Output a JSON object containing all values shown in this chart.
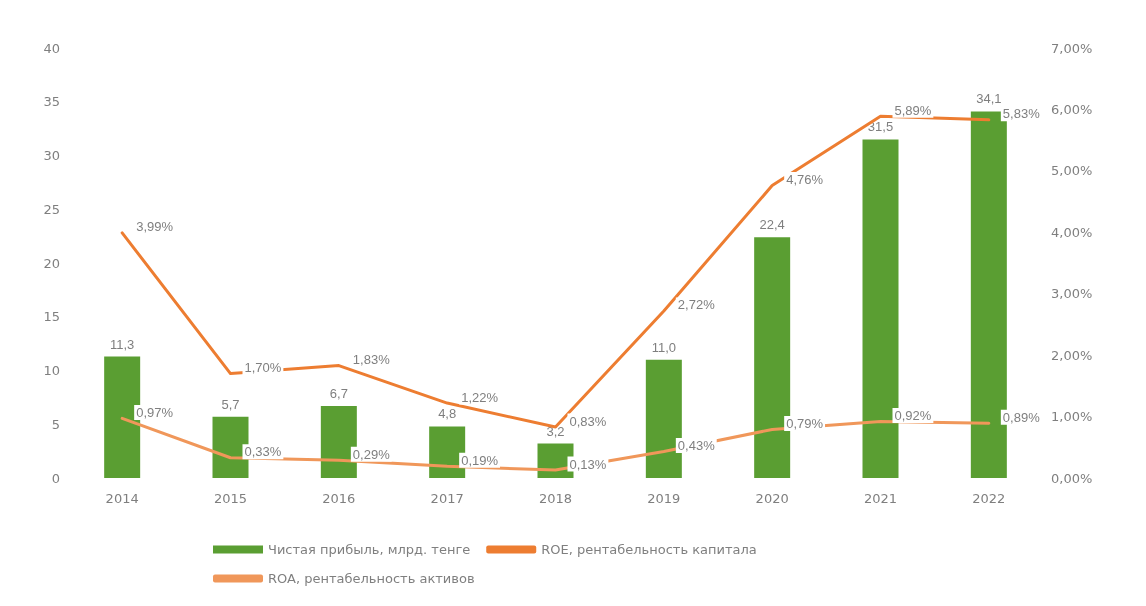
{
  "chart_data": {
    "type": "bar",
    "categories": [
      "2014",
      "2015",
      "2016",
      "2017",
      "2018",
      "2019",
      "2020",
      "2021",
      "2022"
    ],
    "series": [
      {
        "name": "Чистая прибыль, млрд. тенге",
        "color": "#5a9e32",
        "values": [
          11.3,
          5.7,
          6.7,
          4.8,
          3.2,
          11.0,
          22.4,
          31.5,
          34.1
        ],
        "value_labels": [
          "11,3",
          "5,7",
          "6,7",
          "4,8",
          "3,2",
          "11,0",
          "22,4",
          "31,5",
          "34,1"
        ]
      },
      {
        "name": "ROE, рентабельность капитала",
        "type": "line",
        "axis": "y2",
        "color": "#ed7d31",
        "values": [
          3.99,
          1.7,
          1.83,
          1.22,
          0.83,
          2.72,
          4.76,
          5.89,
          5.83
        ],
        "value_labels": [
          "3,99%",
          "1,70%",
          "1,83%",
          "1,22%",
          "0,83%",
          "2,72%",
          "4,76%",
          "5,89%",
          "5,83%"
        ]
      },
      {
        "name": "ROA, рентабельность активов",
        "type": "line",
        "axis": "y2",
        "color": "#f0975a",
        "values": [
          0.97,
          0.33,
          0.29,
          0.19,
          0.13,
          0.43,
          0.79,
          0.92,
          0.89
        ],
        "value_labels": [
          "0,97%",
          "0,33%",
          "0,29%",
          "0,19%",
          "0,13%",
          "0,43%",
          "0,79%",
          "0,92%",
          "0,89%"
        ]
      }
    ],
    "ylim": [
      0,
      40
    ],
    "yticks": [
      0,
      5,
      10,
      15,
      20,
      25,
      30,
      35,
      40
    ],
    "y2lim": [
      0,
      7
    ],
    "y2ticks": [
      {
        "value": 0,
        "label": "0,00%"
      },
      {
        "value": 1,
        "label": "1,00%"
      },
      {
        "value": 2,
        "label": "2,00%"
      },
      {
        "value": 3,
        "label": "3,00%"
      },
      {
        "value": 4,
        "label": "4,00%"
      },
      {
        "value": 5,
        "label": "5,00%"
      },
      {
        "value": 6,
        "label": "6,00%"
      },
      {
        "value": 7,
        "label": "7,00%"
      }
    ],
    "grid": false,
    "legend": "bottom",
    "marker": "none",
    "line_style": "solid"
  }
}
